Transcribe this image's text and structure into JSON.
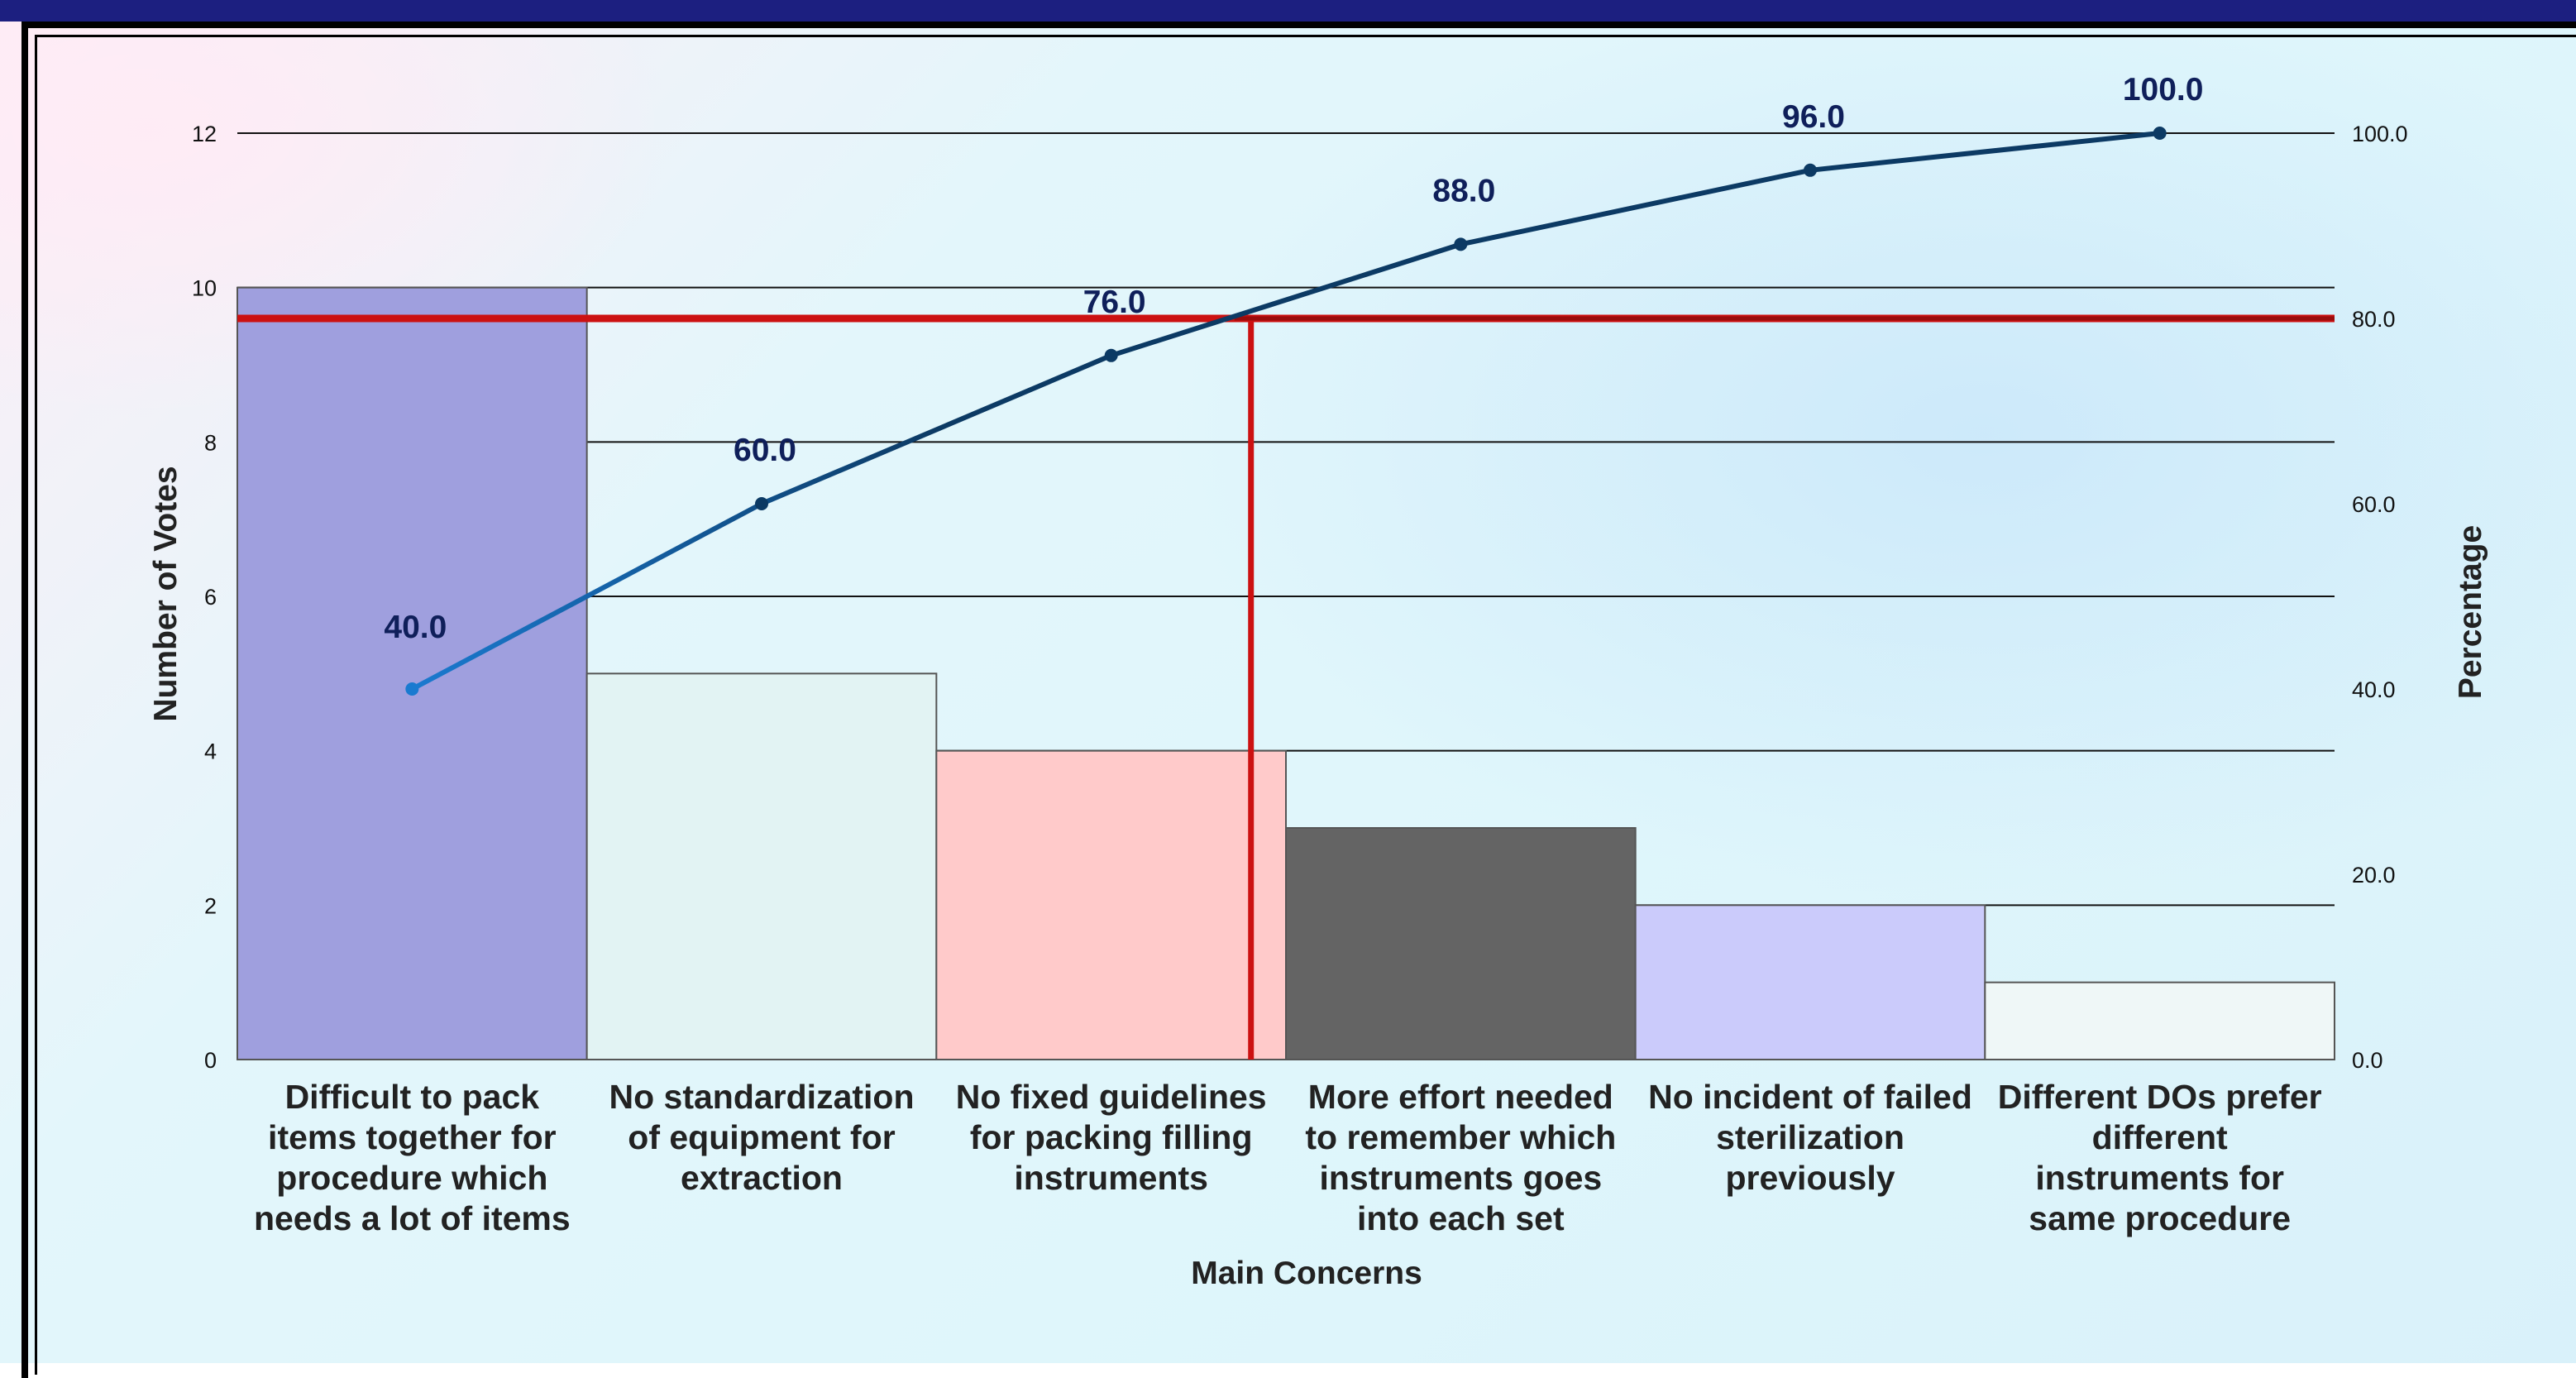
{
  "chart_data": {
    "type": "bar",
    "categories": [
      "Difficult to pack items together for procedure which needs a lot of items",
      "No standardization of equipment for extraction",
      "No fixed guidelines for packing filling instruments",
      "More effort needed to remember which instruments goes into each set",
      "No incident of failed sterilization previously",
      "Different DOs prefer different instruments for same procedure"
    ],
    "category_lines": [
      [
        "Difficult to pack",
        "items together for",
        "procedure which",
        "needs a lot of items"
      ],
      [
        "No standardization",
        "of equipment for",
        "extraction"
      ],
      [
        "No fixed guidelines",
        "for packing filling",
        "instruments"
      ],
      [
        "More effort needed",
        "to remember which",
        "instruments goes",
        "into each set"
      ],
      [
        "No incident of failed",
        "sterilization",
        "previously"
      ],
      [
        "Different DOs prefer",
        "different",
        "instruments for",
        "same procedure"
      ]
    ],
    "series": [
      {
        "type": "bar",
        "axis": "left",
        "values": [
          10,
          5,
          4,
          3,
          2,
          1
        ],
        "colors": [
          "#9f9fde",
          "#e2f3f3",
          "#ffcaca",
          "#646464",
          "#cbcbfb",
          "#eff7f7"
        ]
      },
      {
        "type": "line",
        "axis": "right",
        "values": [
          40.0,
          60.0,
          76.0,
          88.0,
          96.0,
          100.0
        ],
        "labels": [
          "40.0",
          "60.0",
          "76.0",
          "88.0",
          "96.0",
          "100.0"
        ],
        "color": "#0c3a64"
      }
    ],
    "reference_lines": {
      "horizontal_right_value": 80.0,
      "vertical_at_category_index": 2.9,
      "color": "#cc1111"
    },
    "xlabel": "Main Concerns",
    "ylabel": "Number of Votes",
    "ylabel_right": "Percentage",
    "ylim": [
      0,
      12
    ],
    "ylim_right": [
      0,
      100
    ],
    "yticks": [
      "0",
      "2",
      "4",
      "6",
      "8",
      "10",
      "12"
    ],
    "yticks_right": [
      "0.0",
      "20.0",
      "40.0",
      "60.0",
      "80.0",
      "100.0"
    ],
    "grid": "horizontal",
    "legend": "none"
  }
}
